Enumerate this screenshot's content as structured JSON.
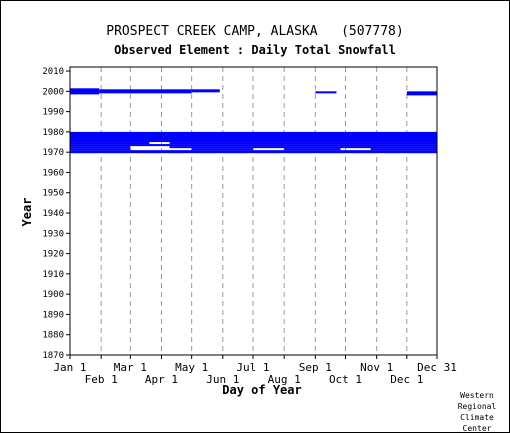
{
  "header": {
    "station": "PROSPECT CREEK CAMP, ALASKA   (507778)",
    "element": "Observed Element : Daily Total Snowfall"
  },
  "credit": "Western\nRegional\nClimate\nCenter",
  "colors": {
    "data": "#0000ff",
    "grid": "#999999",
    "axis": "#000000"
  },
  "chart_data": {
    "type": "heatmap",
    "title": "PROSPECT CREEK CAMP, ALASKA   (507778)",
    "subtitle": "Observed Element : Daily Total Snowfall",
    "xlabel": "Day of Year",
    "ylabel": "Year",
    "xlim": [
      1,
      366
    ],
    "ylim": [
      1870,
      2012
    ],
    "x_ticks_top": [
      {
        "label": "Jan 1",
        "doy": 1
      },
      {
        "label": "Mar 1",
        "doy": 61
      },
      {
        "label": "May 1",
        "doy": 122
      },
      {
        "label": "Jul 1",
        "doy": 183
      },
      {
        "label": "Sep 1",
        "doy": 245
      },
      {
        "label": "Nov 1",
        "doy": 306
      },
      {
        "label": "Dec 31",
        "doy": 366
      }
    ],
    "x_ticks_bottom": [
      {
        "label": "Feb 1",
        "doy": 32
      },
      {
        "label": "Apr 1",
        "doy": 92
      },
      {
        "label": "Jun 1",
        "doy": 153
      },
      {
        "label": "Aug 1",
        "doy": 214
      },
      {
        "label": "Oct 1",
        "doy": 275
      },
      {
        "label": "Dec 1",
        "doy": 336
      }
    ],
    "y_ticks": [
      2010,
      2000,
      1990,
      1980,
      1970,
      1960,
      1950,
      1940,
      1930,
      1920,
      1910,
      1900,
      1890,
      1880,
      1870
    ],
    "grid": "vertical dashed at month boundaries",
    "observed_segments": [
      {
        "year_start": 1969.5,
        "year_end": 1971,
        "doy_start": 1,
        "doy_end": 366
      },
      {
        "year_start": 1971,
        "year_end": 1972,
        "doy_start": 1,
        "doy_end": 61
      },
      {
        "year_start": 1971,
        "year_end": 1972,
        "doy_start": 122,
        "doy_end": 183
      },
      {
        "year_start": 1971,
        "year_end": 1972,
        "doy_start": 214,
        "doy_end": 270
      },
      {
        "year_start": 1971,
        "year_end": 1972,
        "doy_start": 300,
        "doy_end": 366
      },
      {
        "year_start": 1972,
        "year_end": 1973,
        "doy_start": 1,
        "doy_end": 61
      },
      {
        "year_start": 1972,
        "year_end": 1973,
        "doy_start": 100,
        "doy_end": 366
      },
      {
        "year_start": 1973,
        "year_end": 1974,
        "doy_start": 1,
        "doy_end": 366
      },
      {
        "year_start": 1974,
        "year_end": 1975,
        "doy_start": 1,
        "doy_end": 80
      },
      {
        "year_start": 1974,
        "year_end": 1975,
        "doy_start": 100,
        "doy_end": 366
      },
      {
        "year_start": 1975,
        "year_end": 1980,
        "doy_start": 1,
        "doy_end": 366
      },
      {
        "year_start": 1998.5,
        "year_end": 2001.5,
        "doy_start": 1,
        "doy_end": 30
      },
      {
        "year_start": 1999,
        "year_end": 2001,
        "doy_start": 30,
        "doy_end": 122
      },
      {
        "year_start": 1999.5,
        "year_end": 2001,
        "doy_start": 122,
        "doy_end": 150
      },
      {
        "year_start": 1999,
        "year_end": 2000,
        "doy_start": 245,
        "doy_end": 266
      },
      {
        "year_start": 1998,
        "year_end": 2000,
        "doy_start": 336,
        "doy_end": 366
      }
    ]
  }
}
